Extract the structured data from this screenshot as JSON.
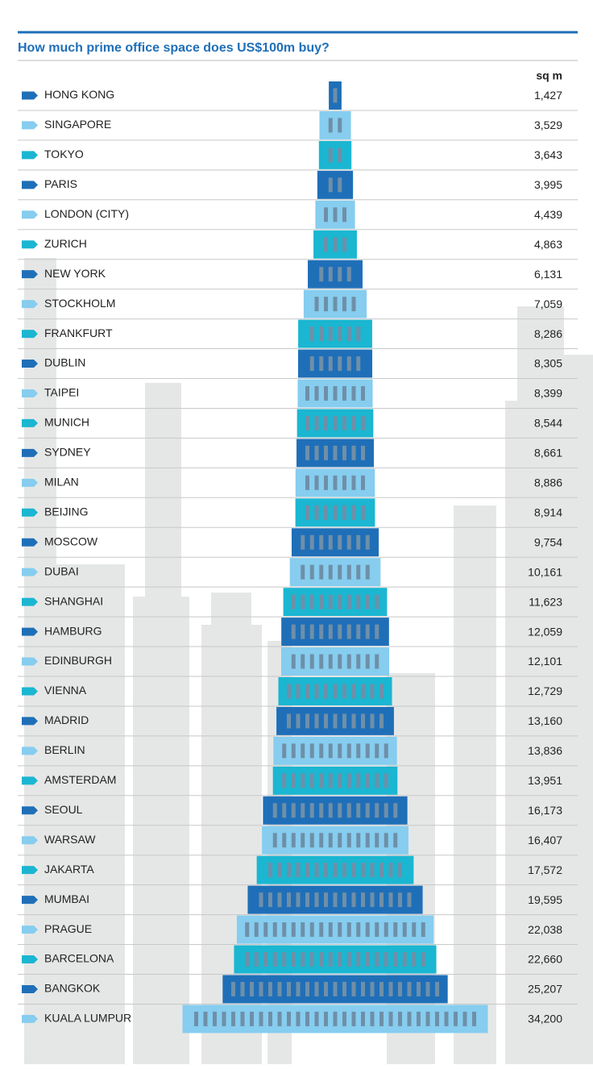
{
  "chart_data": {
    "type": "building-bar",
    "title": "How much prime office space does US$100m buy?",
    "unit": "sq m",
    "categories": [
      "HONG KONG",
      "SINGAPORE",
      "TOKYO",
      "PARIS",
      "LONDON (CITY)",
      "ZURICH",
      "NEW YORK",
      "STOCKHOLM",
      "FRANKFURT",
      "DUBLIN",
      "TAIPEI",
      "MUNICH",
      "SYDNEY",
      "MILAN",
      "BEIJING",
      "MOSCOW",
      "DUBAI",
      "SHANGHAI",
      "HAMBURG",
      "EDINBURGH",
      "VIENNA",
      "MADRID",
      "BERLIN",
      "AMSTERDAM",
      "SEOUL",
      "WARSAW",
      "JAKARTA",
      "MUMBAI",
      "PRAGUE",
      "BARCELONA",
      "BANGKOK",
      "KUALA LUMPUR"
    ],
    "values": [
      1427,
      3529,
      3643,
      3995,
      4439,
      4863,
      6131,
      7059,
      8286,
      8305,
      8399,
      8544,
      8661,
      8886,
      8914,
      9754,
      10161,
      11623,
      12059,
      12101,
      12729,
      13160,
      13836,
      13951,
      16173,
      16407,
      17572,
      19595,
      22038,
      22660,
      25207,
      34200
    ],
    "value_labels": [
      "1,427",
      "3,529",
      "3,643",
      "3,995",
      "4,439",
      "4,863",
      "6,131",
      "7,059",
      "8,286",
      "8,305",
      "8,399",
      "8,544",
      "8,661",
      "8,886",
      "8,914",
      "9,754",
      "10,161",
      "11,623",
      "12,059",
      "12,101",
      "12,729",
      "13,160",
      "13,836",
      "13,951",
      "16,173",
      "16,407",
      "17,572",
      "19,595",
      "22,038",
      "22,660",
      "25,207",
      "34,200"
    ],
    "colors": [
      "#1f6fb8",
      "#86cdef",
      "#1bb6d1"
    ]
  }
}
